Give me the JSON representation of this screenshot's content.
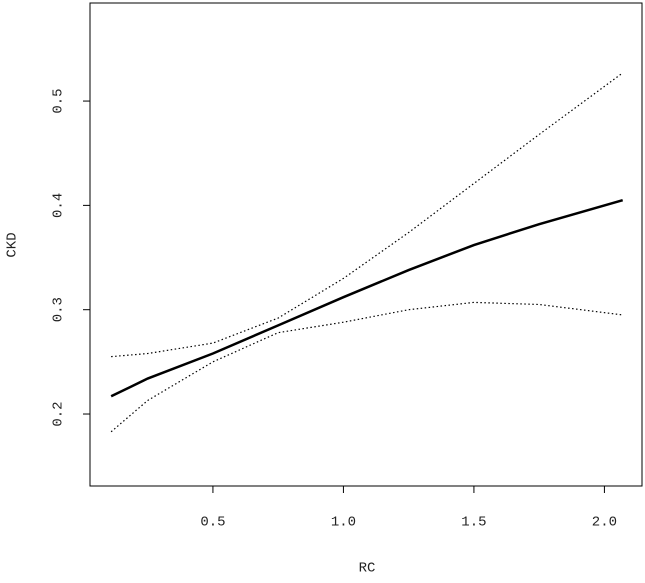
{
  "chart_data": {
    "type": "line",
    "x_label": "RC",
    "y_label": "CKD",
    "x": [
      0.11,
      0.25,
      0.5,
      0.75,
      1.0,
      1.25,
      1.5,
      1.75,
      2.07
    ],
    "series": [
      {
        "color": "#000000",
        "dash": "solid",
        "values": [
          0.217,
          0.234,
          0.258,
          0.285,
          0.312,
          0.338,
          0.362,
          0.382,
          0.405
        ]
      },
      {
        "color": "#000000",
        "dash": "dotted",
        "values": [
          0.255,
          0.258,
          0.268,
          0.292,
          0.33,
          0.374,
          0.421,
          0.468,
          0.527
        ]
      },
      {
        "color": "#000000",
        "dash": "dotted",
        "values": [
          0.183,
          0.213,
          0.25,
          0.278,
          0.288,
          0.3,
          0.307,
          0.305,
          0.295
        ]
      }
    ],
    "xlim": [
      0.029,
      2.144
    ],
    "ylim": [
      0.131,
      0.594
    ],
    "xticks": [
      {
        "value": 0.5,
        "label": "0.5"
      },
      {
        "value": 1.0,
        "label": "1.0"
      },
      {
        "value": 1.5,
        "label": "1.5"
      },
      {
        "value": 2.0,
        "label": "2.0"
      }
    ],
    "yticks": [
      {
        "value": 0.2,
        "label": "0.2"
      },
      {
        "value": 0.3,
        "label": "0.3"
      },
      {
        "value": 0.4,
        "label": "0.4"
      },
      {
        "value": 0.5,
        "label": "0.5"
      }
    ]
  }
}
